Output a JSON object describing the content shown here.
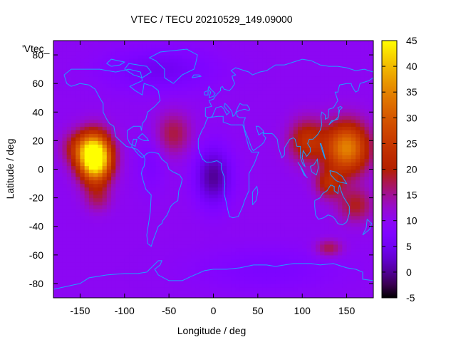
{
  "chart_data": {
    "type": "heatmap",
    "title": "VTEC / TECU 20210529_149.09000",
    "xlabel": "Longitude / deg",
    "ylabel": "Latitude / deg",
    "legend_label": "'Vtec_",
    "xlim": [
      -180,
      180
    ],
    "ylim": [
      -90,
      90
    ],
    "xticks": [
      -150,
      -100,
      -50,
      0,
      50,
      100,
      150
    ],
    "yticks": [
      -80,
      -60,
      -40,
      -20,
      0,
      20,
      40,
      60,
      80
    ],
    "colorbar": {
      "range": [
        -5,
        45
      ],
      "ticks": [
        -5,
        0,
        5,
        10,
        15,
        20,
        25,
        30,
        35,
        40,
        45
      ]
    },
    "grid_resolution_deg": {
      "lon": 5,
      "lat": 2.5
    },
    "background_level": 10,
    "features": [
      {
        "lon": -133,
        "lat": 8,
        "peak": 43,
        "sigma_lon": 18,
        "sigma_lat": 16
      },
      {
        "lon": -150,
        "lat": 15,
        "peak": 10,
        "sigma_lon": 20,
        "sigma_lat": 12
      },
      {
        "lon": -130,
        "lat": -20,
        "peak": 6,
        "sigma_lon": 15,
        "sigma_lat": 10
      },
      {
        "lon": 150,
        "lat": 15,
        "peak": 25,
        "sigma_lon": 25,
        "sigma_lat": 18
      },
      {
        "lon": 105,
        "lat": 20,
        "peak": 13,
        "sigma_lon": 20,
        "sigma_lat": 15
      },
      {
        "lon": 130,
        "lat": -10,
        "peak": 11,
        "sigma_lon": 15,
        "sigma_lat": 10
      },
      {
        "lon": 160,
        "lat": -25,
        "peak": 9,
        "sigma_lon": 20,
        "sigma_lat": 12
      },
      {
        "lon": -45,
        "lat": 25,
        "peak": 8,
        "sigma_lon": 20,
        "sigma_lat": 15
      },
      {
        "lon": 130,
        "lat": -55,
        "peak": 8,
        "sigma_lon": 15,
        "sigma_lat": 6
      },
      {
        "lon": 0,
        "lat": -5,
        "peak": -10,
        "sigma_lon": 20,
        "sigma_lat": 20
      },
      {
        "lon": -70,
        "lat": 5,
        "peak": -3,
        "sigma_lon": 15,
        "sigma_lat": 20
      },
      {
        "lon": -60,
        "lat": 70,
        "peak": -5,
        "sigma_lon": 60,
        "sigma_lat": 15
      },
      {
        "lon": 60,
        "lat": -70,
        "peak": -3,
        "sigma_lon": 80,
        "sigma_lat": 15
      }
    ],
    "palette": "black-purple-red-yellow",
    "grid": false
  }
}
